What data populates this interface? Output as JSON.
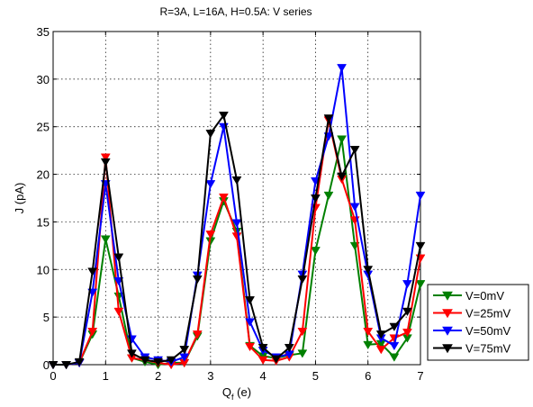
{
  "chart_data": {
    "type": "line",
    "title": "R=3A, L=16A, H=0.5A: V series",
    "xlabel": "Q",
    "xlabel_subscript": "f",
    "xlabel_suffix": " (e)",
    "ylabel": "J (pA)",
    "xlim": [
      0,
      7
    ],
    "ylim": [
      0,
      35
    ],
    "xticks": [
      0,
      1,
      2,
      3,
      4,
      5,
      6,
      7
    ],
    "yticks": [
      0,
      5,
      10,
      15,
      20,
      25,
      30,
      35
    ],
    "grid": true,
    "legend_position": "bottom-right outside",
    "marker": "triangle-down",
    "x": [
      0,
      0.25,
      0.5,
      0.75,
      1.0,
      1.25,
      1.5,
      1.75,
      2.0,
      2.25,
      2.5,
      2.75,
      3.0,
      3.25,
      3.5,
      3.75,
      4.0,
      4.25,
      4.5,
      4.75,
      5.0,
      5.25,
      5.5,
      5.75,
      6.0,
      6.25,
      6.5,
      6.75,
      7.0
    ],
    "series": [
      {
        "name": "V=0mV",
        "color": "#008000",
        "values": [
          0,
          0,
          0.2,
          3.2,
          13.2,
          7.2,
          0.7,
          0.3,
          0,
          0.2,
          0.2,
          3.0,
          13.0,
          17.2,
          14.0,
          2.0,
          0.9,
          0.7,
          1.0,
          1.2,
          12.0,
          17.8,
          23.7,
          12.5,
          2.1,
          2.2,
          0.8,
          2.8,
          8.5
        ]
      },
      {
        "name": "V=25mV",
        "color": "#ff0000",
        "values": [
          0,
          0,
          0.2,
          3.5,
          21.8,
          5.6,
          0.7,
          0.5,
          0.2,
          0,
          0.2,
          3.2,
          13.7,
          17.6,
          13.5,
          1.9,
          0.5,
          0.4,
          0.8,
          3.5,
          16.5,
          25.7,
          19.5,
          15.2,
          3.5,
          1.6,
          2.8,
          3.4,
          11.2
        ]
      },
      {
        "name": "V=50mV",
        "color": "#0000ff",
        "values": [
          0,
          0,
          0.2,
          7.6,
          19.0,
          8.8,
          2.7,
          0.8,
          0.5,
          0.3,
          0.8,
          9.4,
          19.0,
          25.0,
          14.9,
          4.5,
          1.5,
          0.8,
          1.1,
          9.5,
          19.3,
          24.0,
          31.2,
          16.6,
          9.5,
          2.8,
          2.0,
          8.5,
          17.8
        ]
      },
      {
        "name": "V=75mV",
        "color": "#000000",
        "values": [
          0,
          0,
          0.3,
          9.8,
          21.3,
          11.3,
          1.2,
          0.5,
          0.3,
          0.5,
          1.6,
          9.0,
          24.3,
          26.2,
          19.4,
          6.8,
          1.8,
          0.6,
          1.8,
          9.0,
          17.5,
          25.9,
          19.8,
          22.6,
          10.0,
          3.2,
          4.0,
          5.6,
          12.5
        ]
      }
    ]
  }
}
